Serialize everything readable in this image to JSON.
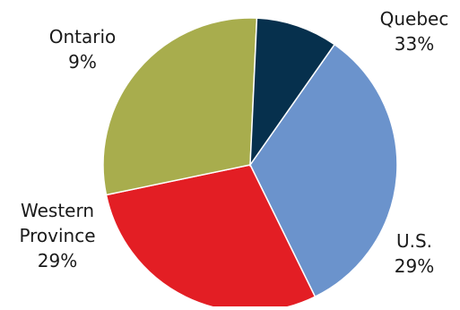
{
  "chart_data": {
    "type": "pie",
    "title": "",
    "slices": [
      {
        "label_lines": [
          "Quebec"
        ],
        "value": 33,
        "value_label": "33%",
        "color": "#6b93cc"
      },
      {
        "label_lines": [
          "U.S."
        ],
        "value": 29,
        "value_label": "29%",
        "color": "#e31e24"
      },
      {
        "label_lines": [
          "Western",
          "Province"
        ],
        "value": 29,
        "value_label": "29%",
        "color": "#a8ad4d"
      },
      {
        "label_lines": [
          "Ontario"
        ],
        "value": 9,
        "value_label": "9%",
        "color": "#06304d"
      }
    ],
    "start_angle_deg": 35,
    "direction": "clockwise",
    "legend": "none"
  }
}
